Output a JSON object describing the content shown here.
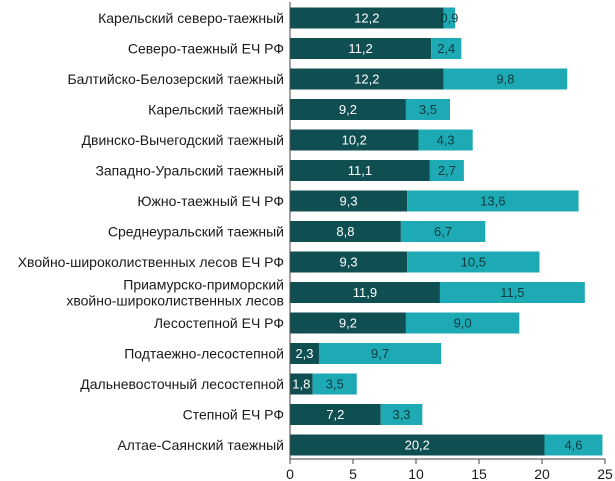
{
  "chart_data": {
    "type": "bar",
    "orientation": "horizontal",
    "stacked": true,
    "title": "",
    "xlabel": "",
    "ylabel": "",
    "xlim": [
      0,
      25
    ],
    "xticks": [
      0,
      5,
      10,
      15,
      20,
      25
    ],
    "grid": false,
    "colors": {
      "series1": "#0f4f52",
      "series2": "#1eaab5",
      "label_on_dark": "#ffffff",
      "label_on_light": "#0d3b3d"
    },
    "categories": [
      [
        "Карельский северо-таежный"
      ],
      [
        "Северо-таежный ЕЧ РФ"
      ],
      [
        "Балтийско-Белозерский таежный"
      ],
      [
        "Карельский таежный"
      ],
      [
        "Двинско-Вычегодский таежный"
      ],
      [
        "Западно-Уральский таежный"
      ],
      [
        "Южно-таежный ЕЧ РФ"
      ],
      [
        "Среднеуральский таежный"
      ],
      [
        "Хвойно-широколиственных лесов ЕЧ РФ"
      ],
      [
        "Приамурско-приморский",
        "хвойно-широколиственных лесов"
      ],
      [
        "Лесостепной ЕЧ РФ"
      ],
      [
        "Подтаежно-лесостепной"
      ],
      [
        "Дальневосточный лесостепной"
      ],
      [
        "Степной ЕЧ РФ"
      ],
      [
        "Алтае-Саянский таежный"
      ]
    ],
    "series": [
      {
        "name": "series1",
        "values": [
          12.2,
          11.2,
          12.2,
          9.2,
          10.2,
          11.1,
          9.3,
          8.8,
          9.3,
          11.9,
          9.2,
          2.3,
          1.8,
          7.2,
          20.2
        ],
        "labels": [
          "12,2",
          "11,2",
          "12,2",
          "9,2",
          "10,2",
          "11,1",
          "9,3",
          "8,8",
          "9,3",
          "11,9",
          "9,2",
          "2,3",
          "1,8",
          "7,2",
          "20,2"
        ]
      },
      {
        "name": "series2",
        "values": [
          0.9,
          2.4,
          9.8,
          3.5,
          4.3,
          2.7,
          13.6,
          6.7,
          10.5,
          11.5,
          9.0,
          9.7,
          3.5,
          3.3,
          4.6
        ],
        "labels": [
          "0,9",
          "2,4",
          "9,8",
          "3,5",
          "4,3",
          "2,7",
          "13,6",
          "6,7",
          "10,5",
          "11,5",
          "9,0",
          "9,7",
          "3,5",
          "3,3",
          "4,6"
        ]
      }
    ]
  }
}
